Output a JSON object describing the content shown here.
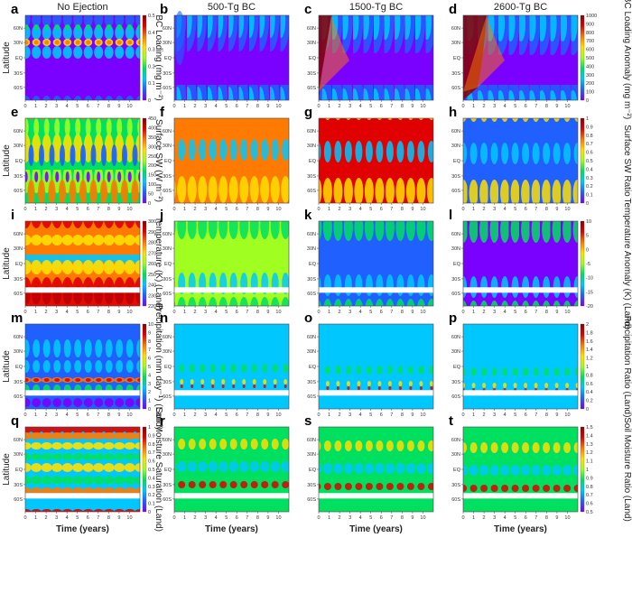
{
  "chart_data": {
    "type": "heatmap",
    "title": "",
    "columns": [
      "No Ejection",
      "500-Tg BC",
      "1500-Tg BC",
      "2600-Tg BC"
    ],
    "xlabel": "Time (years)",
    "ylabel": "Latitude",
    "xlim": [
      0,
      11
    ],
    "xticks": [
      "0",
      "1",
      "2",
      "3",
      "4",
      "5",
      "6",
      "7",
      "8",
      "9",
      "10"
    ],
    "yticks": [
      "60N",
      "30N",
      "EQ",
      "30S",
      "60S"
    ],
    "rows": [
      {
        "panels": [
          "a",
          "b",
          "c",
          "d"
        ],
        "cb1": {
          "label": "BC Loading (mg m⁻²)",
          "ticks": [
            "0",
            "0.1",
            "0.2",
            "0.3",
            "0.4",
            "0.5"
          ],
          "range": [
            0,
            0.5
          ]
        },
        "cb2": {
          "label": "BC Loading Anomaly (mg m⁻²)",
          "ticks": [
            "0",
            "100",
            "200",
            "300",
            "400",
            "500",
            "600",
            "700",
            "800",
            "900",
            "1000"
          ],
          "range": [
            0,
            1000
          ]
        }
      },
      {
        "panels": [
          "e",
          "f",
          "g",
          "h"
        ],
        "cb1": {
          "label": "Surface SW (W m⁻²)",
          "ticks": [
            "0",
            "50",
            "100",
            "150",
            "200",
            "250",
            "300",
            "350",
            "400",
            "450"
          ],
          "range": [
            0,
            450
          ]
        },
        "cb2": {
          "label": "Surface SW Ratio",
          "ticks": [
            "0",
            "0.1",
            "0.2",
            "0.3",
            "0.4",
            "0.5",
            "0.6",
            "0.7",
            "0.8",
            "0.9",
            "1"
          ],
          "range": [
            0,
            1
          ]
        }
      },
      {
        "panels": [
          "i",
          "j",
          "k",
          "l"
        ],
        "cb1": {
          "label": "Temperature (K) (Land)",
          "ticks": [
            "220",
            "230",
            "240",
            "250",
            "260",
            "270",
            "280",
            "290",
            "300"
          ],
          "range": [
            220,
            300
          ]
        },
        "cb2": {
          "label": "Temperature Anomaly (K) (Land)",
          "ticks": [
            "-20",
            "-15",
            "-10",
            "-5",
            "0",
            "5",
            "10"
          ],
          "range": [
            -20,
            10
          ]
        }
      },
      {
        "panels": [
          "m",
          "n",
          "o",
          "p"
        ],
        "cb1": {
          "label": "Precipitation (mm day⁻¹) (Land)",
          "ticks": [
            "0",
            "1",
            "2",
            "3",
            "4",
            "5",
            "6",
            "7",
            "8",
            "9",
            "10"
          ],
          "range": [
            0,
            10
          ]
        },
        "cb2": {
          "label": "Precipitation Ratio (Land)",
          "ticks": [
            "0",
            "0.2",
            "0.4",
            "0.6",
            "0.8",
            "1",
            "1.2",
            "1.4",
            "1.6",
            "1.8",
            "2"
          ],
          "range": [
            0,
            2
          ]
        }
      },
      {
        "panels": [
          "q",
          "r",
          "s",
          "t"
        ],
        "cb1": {
          "label": "Soil Moisture Saturation (Land)",
          "ticks": [
            "0",
            "0.1",
            "0.2",
            "0.3",
            "0.4",
            "0.5",
            "0.6",
            "0.7",
            "0.8",
            "0.9",
            "1"
          ],
          "range": [
            0,
            1
          ]
        },
        "cb2": {
          "label": "Soil Moisture Ratio (Land)",
          "ticks": [
            "0.5",
            "0.6",
            "0.7",
            "0.8",
            "0.9",
            "1",
            "1.1",
            "1.2",
            "1.3",
            "1.4",
            "1.5"
          ],
          "range": [
            0.5,
            1.5
          ]
        }
      }
    ]
  }
}
